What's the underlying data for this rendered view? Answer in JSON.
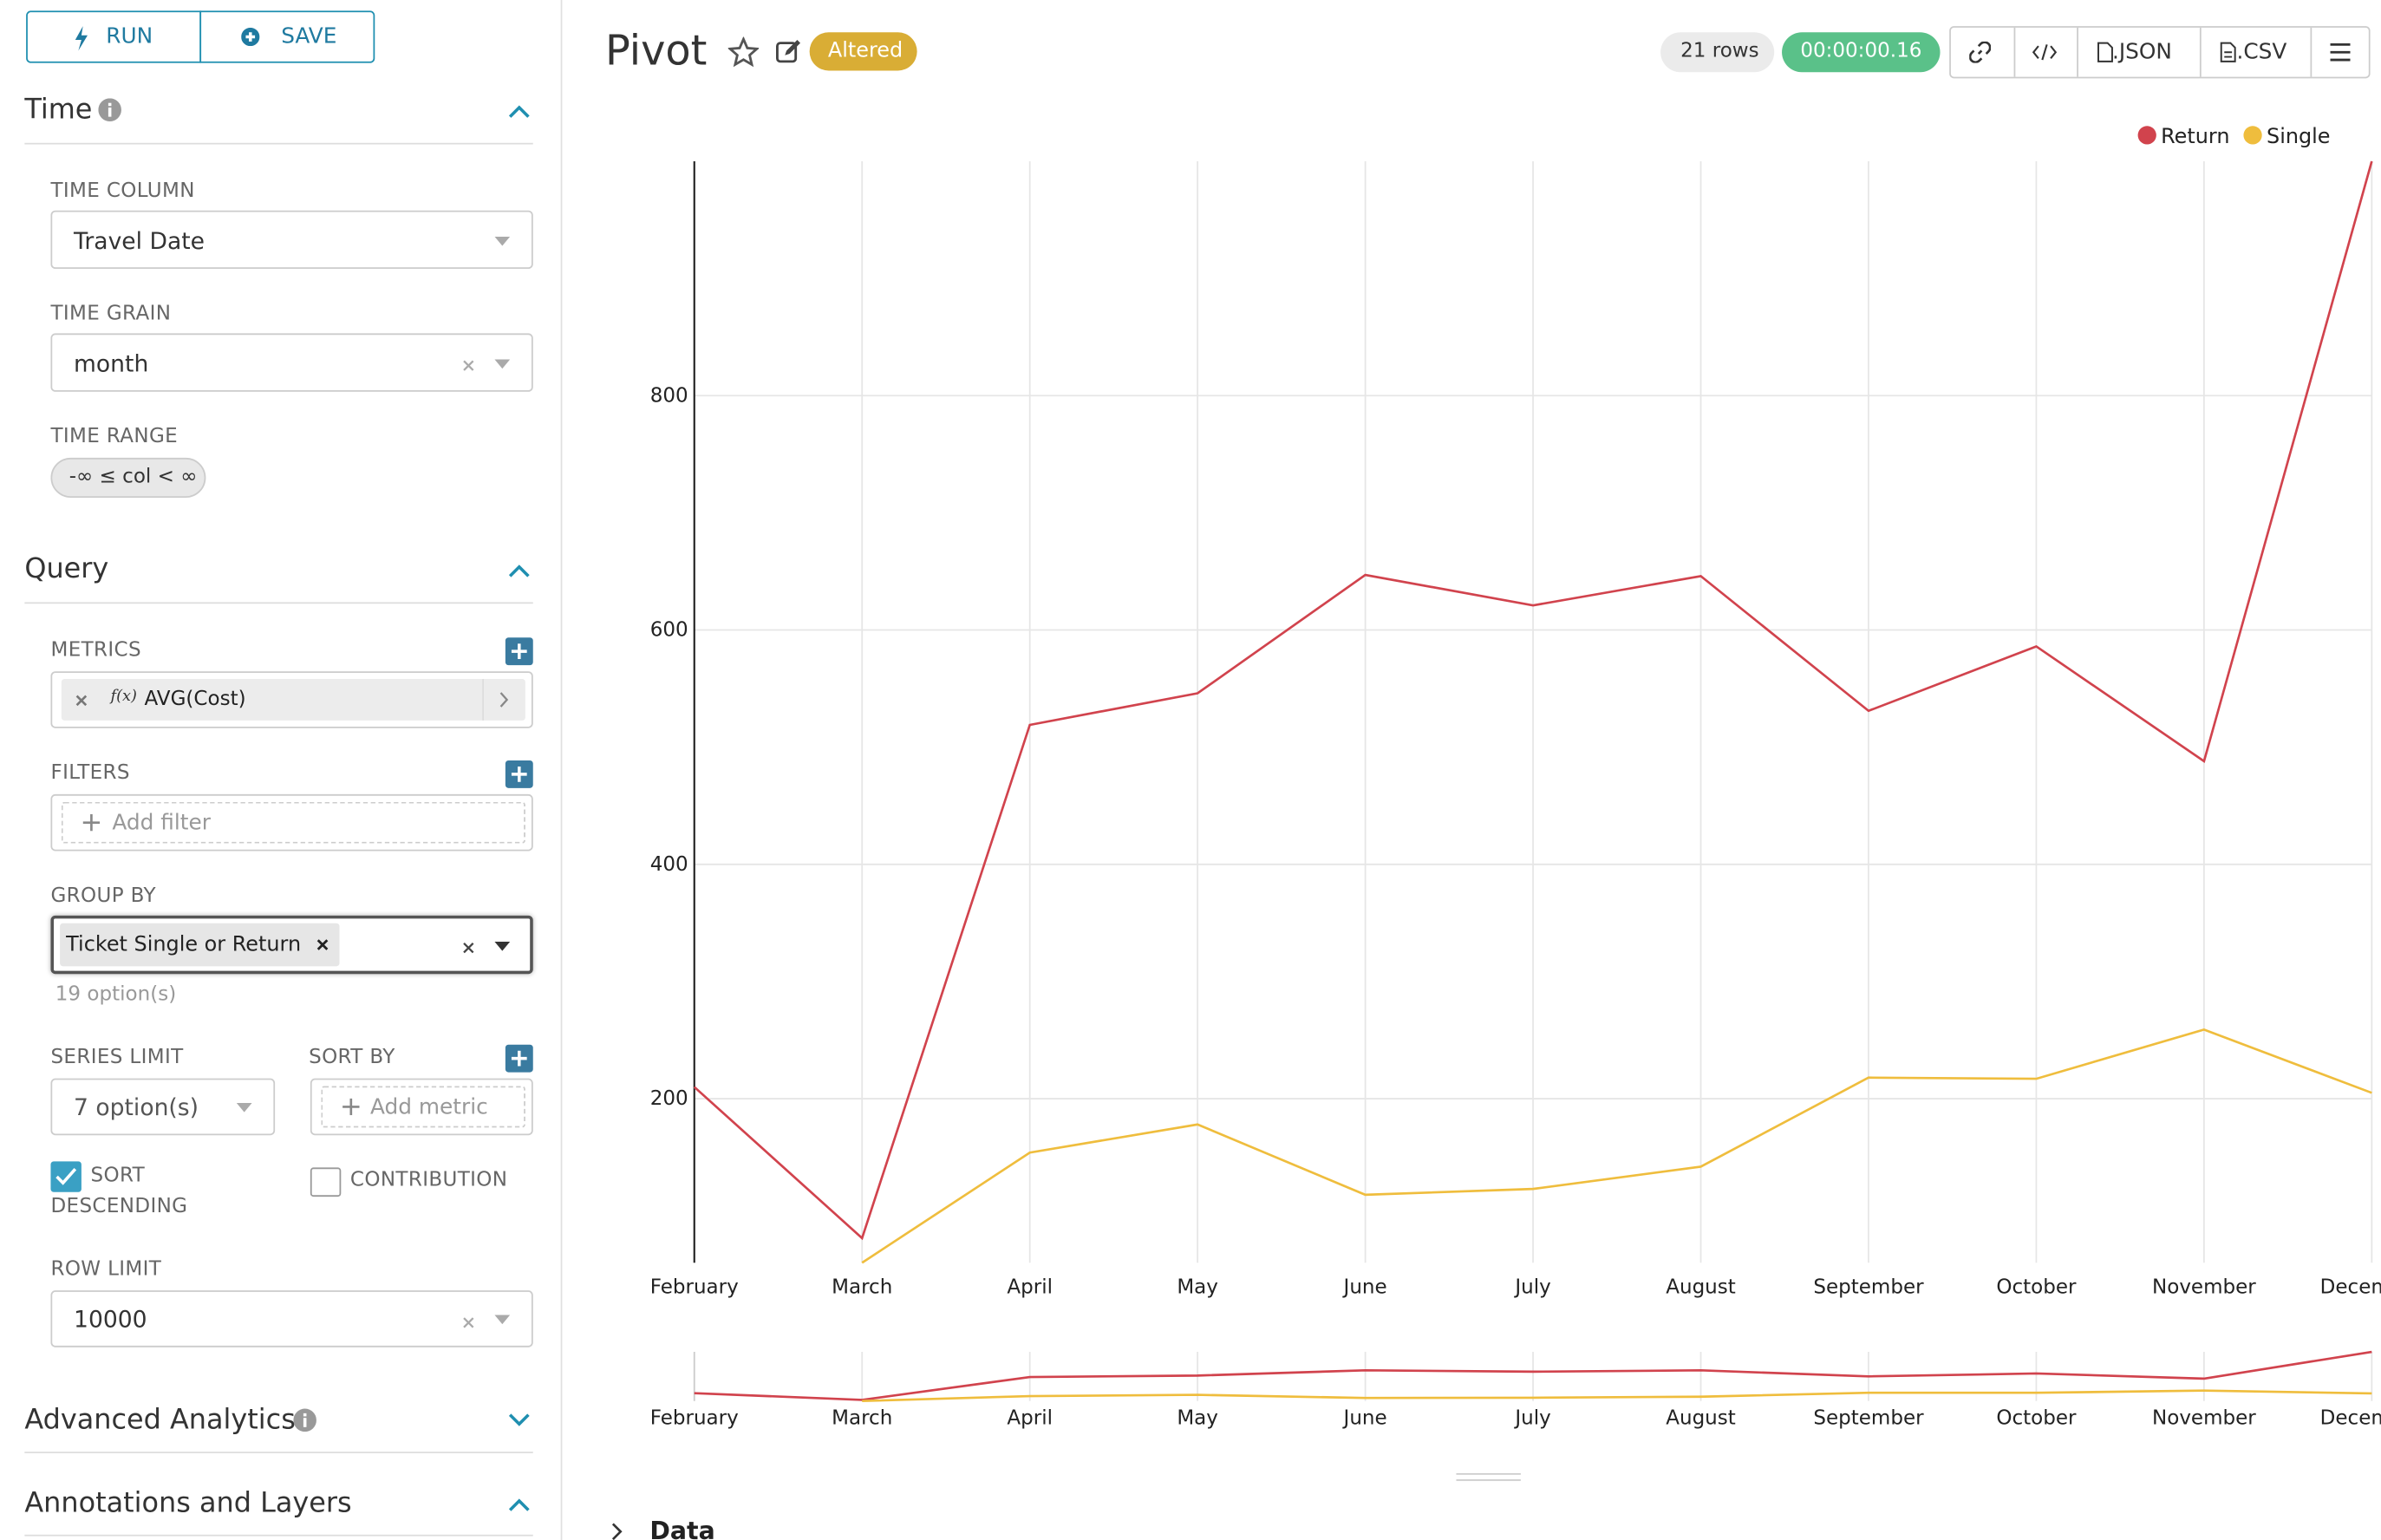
{
  "controls": {
    "run": "RUN",
    "save": "SAVE"
  },
  "time_section": {
    "title": "Time",
    "time_column_label": "TIME COLUMN",
    "time_column": "Travel Date",
    "time_grain_label": "TIME GRAIN",
    "time_grain": "month",
    "time_range_label": "TIME RANGE",
    "time_range": "-∞ ≤ col < ∞"
  },
  "query_section": {
    "title": "Query",
    "metrics_label": "METRICS",
    "metric_icon": "f(x)",
    "metric": "AVG(Cost)",
    "filters_label": "FILTERS",
    "filter_placeholder": "Add filter",
    "group_by_label": "GROUP BY",
    "group_by": "Ticket Single or Return",
    "group_by_hint": "19 option(s)",
    "series_limit_label": "SERIES LIMIT",
    "series_limit": "7 option(s)",
    "sort_by_label": "SORT BY",
    "sort_by_placeholder": "Add metric",
    "sort_descending": "SORT DESCENDING",
    "contribution": "CONTRIBUTION",
    "row_limit_label": "ROW LIMIT",
    "row_limit": 10000
  },
  "other_sections": {
    "advanced": "Advanced Analytics",
    "annotations": "Annotations and Layers"
  },
  "header": {
    "title": "Pivot",
    "badge": "Altered",
    "rows": "21 rows",
    "timer": "00:00:00.16",
    "json": ".JSON",
    "csv": ".CSV"
  },
  "data_panel": "Data",
  "chart_data": {
    "type": "line",
    "categories": [
      "February",
      "March",
      "April",
      "May",
      "June",
      "July",
      "August",
      "September",
      "October",
      "November",
      "December"
    ],
    "series": [
      {
        "name": "Return",
        "color": "#d1434d",
        "values": [
          210,
          81,
          519,
          546,
          647,
          621,
          646,
          531,
          586,
          488,
          1000
        ]
      },
      {
        "name": "Single",
        "color": "#efbd3d",
        "values": [
          null,
          60,
          154,
          178,
          118,
          123,
          142,
          218,
          217,
          259,
          205
        ]
      }
    ],
    "ylim": [
      60,
      1000
    ],
    "yticks": [
      200,
      400,
      600,
      800
    ],
    "grid": true
  }
}
